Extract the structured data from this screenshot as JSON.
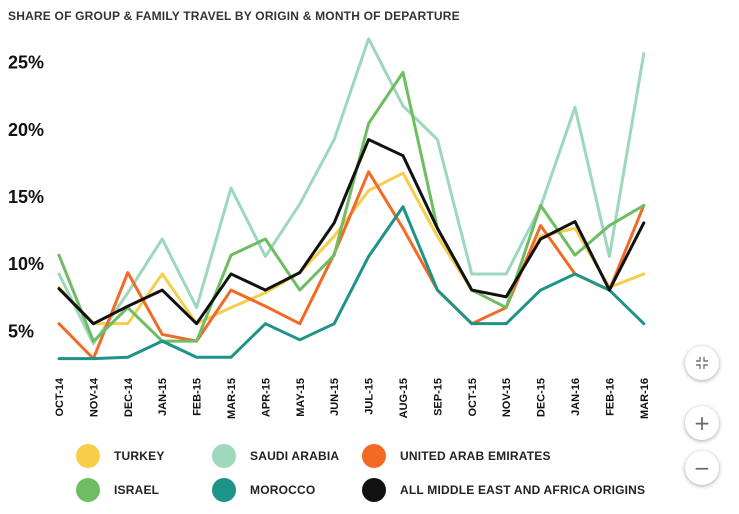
{
  "title": "SHARE OF GROUP & FAMILY TRAVEL BY ORIGIN & MONTH OF DEPARTURE",
  "controls": {
    "collapse_icon": "collapse-icon",
    "zoom_in_label": "+",
    "zoom_out_label": "−"
  },
  "chart_data": {
    "type": "line",
    "title": "SHARE OF GROUP & FAMILY TRAVEL BY ORIGIN & MONTH OF DEPARTURE",
    "categories": [
      "OCT-14",
      "NOV-14",
      "DEC-14",
      "JAN-15",
      "FEB-15",
      "MAR-15",
      "APR-15",
      "MAY-15",
      "JUN-15",
      "JUL-15",
      "AUG-15",
      "SEP-15",
      "OCT-15",
      "NOV-15",
      "DEC-15",
      "JAN-16",
      "FEB-16",
      "MAR-16"
    ],
    "ylim": [
      2.5,
      27.5
    ],
    "yticks": [
      5,
      10,
      15,
      20,
      25
    ],
    "ytick_labels": [
      "5%",
      "10%",
      "15%",
      "20%",
      "25%"
    ],
    "grid": false,
    "legend_position": "bottom",
    "series": [
      {
        "name": "TURKEY",
        "color": "#f7cd4a",
        "values": [
          8.2,
          5.5,
          5.5,
          9.2,
          5.5,
          6.7,
          7.8,
          9.3,
          12.0,
          15.4,
          16.7,
          12.0,
          8.0,
          7.5,
          12.0,
          12.6,
          8.2,
          9.2
        ]
      },
      {
        "name": "SAUDI ARABIA",
        "color": "#9dd8bd",
        "values": [
          9.2,
          4.0,
          7.8,
          11.8,
          6.7,
          15.6,
          10.5,
          14.4,
          19.2,
          26.7,
          21.7,
          19.2,
          9.2,
          9.2,
          14.2,
          21.6,
          10.5,
          25.6
        ]
      },
      {
        "name": "UNITED ARAB EMIRATES",
        "color": "#f26a25",
        "values": [
          5.5,
          2.9,
          9.3,
          4.7,
          4.2,
          8.0,
          6.8,
          5.5,
          10.7,
          16.8,
          12.6,
          8.0,
          5.5,
          6.7,
          12.8,
          9.2,
          8.0,
          14.3
        ]
      },
      {
        "name": "ISRAEL",
        "color": "#6ebd62",
        "values": [
          10.6,
          4.2,
          6.7,
          4.2,
          4.2,
          10.6,
          11.8,
          8.0,
          10.6,
          20.4,
          24.2,
          12.6,
          8.0,
          6.7,
          14.3,
          10.6,
          12.8,
          14.3
        ]
      },
      {
        "name": "MOROCCO",
        "color": "#1e9388",
        "values": [
          2.9,
          2.9,
          3.0,
          4.2,
          3.0,
          3.0,
          5.5,
          4.3,
          5.5,
          10.5,
          14.2,
          8.0,
          5.5,
          5.5,
          8.0,
          9.2,
          8.0,
          5.5
        ]
      },
      {
        "name": "ALL MIDDLE EAST AND AFRICA ORIGINS",
        "color": "#111111",
        "values": [
          8.1,
          5.5,
          6.8,
          8.0,
          5.5,
          9.2,
          8.0,
          9.3,
          13.0,
          19.2,
          18.0,
          12.6,
          8.0,
          7.5,
          11.8,
          13.1,
          8.0,
          13.0
        ]
      }
    ]
  }
}
